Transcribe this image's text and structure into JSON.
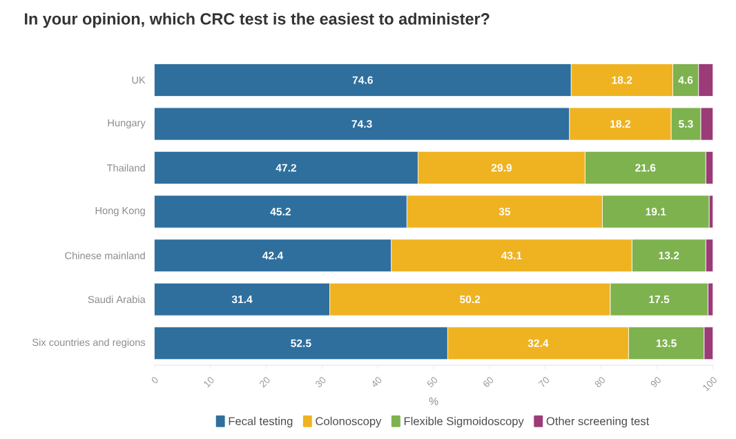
{
  "chart_data": {
    "type": "bar",
    "orientation": "horizontal",
    "stacked": true,
    "title": "In your opinion, which CRC test is the easiest to administer?",
    "xlabel": "%",
    "categories": [
      "UK",
      "Hungary",
      "Thailand",
      "Hong Kong",
      "Chinese mainland",
      "Saudi Arabia",
      "Six countries and regions"
    ],
    "series": [
      {
        "name": "Fecal testing",
        "color": "#2e6f9e",
        "values": [
          74.6,
          74.3,
          47.2,
          45.2,
          42.4,
          31.4,
          52.5
        ],
        "value_labels": [
          "74.6",
          "74.3",
          "47.2",
          "45.2",
          "42.4",
          "31.4",
          "52.5"
        ]
      },
      {
        "name": "Colonoscopy",
        "color": "#efb321",
        "values": [
          18.2,
          18.2,
          29.9,
          35,
          43.1,
          50.2,
          32.4
        ],
        "value_labels": [
          "18.2",
          "18.2",
          "29.9",
          "35",
          "43.1",
          "50.2",
          "32.4"
        ]
      },
      {
        "name": "Flexible Sigmoidoscopy",
        "color": "#7db24e",
        "values": [
          4.6,
          5.3,
          21.6,
          19.1,
          13.2,
          17.5,
          13.5
        ],
        "value_labels": [
          "4.6",
          "5.3",
          "21.6",
          "19.1",
          "13.2",
          "17.5",
          "13.5"
        ]
      },
      {
        "name": "Other screening test",
        "color": "#9b3b78",
        "values": [
          2.6,
          2.2,
          1.3,
          0.7,
          1.3,
          0.9,
          1.6
        ]
      }
    ],
    "xlim": [
      0,
      100
    ],
    "xticks": [
      0,
      10,
      20,
      30,
      40,
      50,
      60,
      70,
      80,
      90,
      100
    ],
    "legend": "bottom"
  }
}
